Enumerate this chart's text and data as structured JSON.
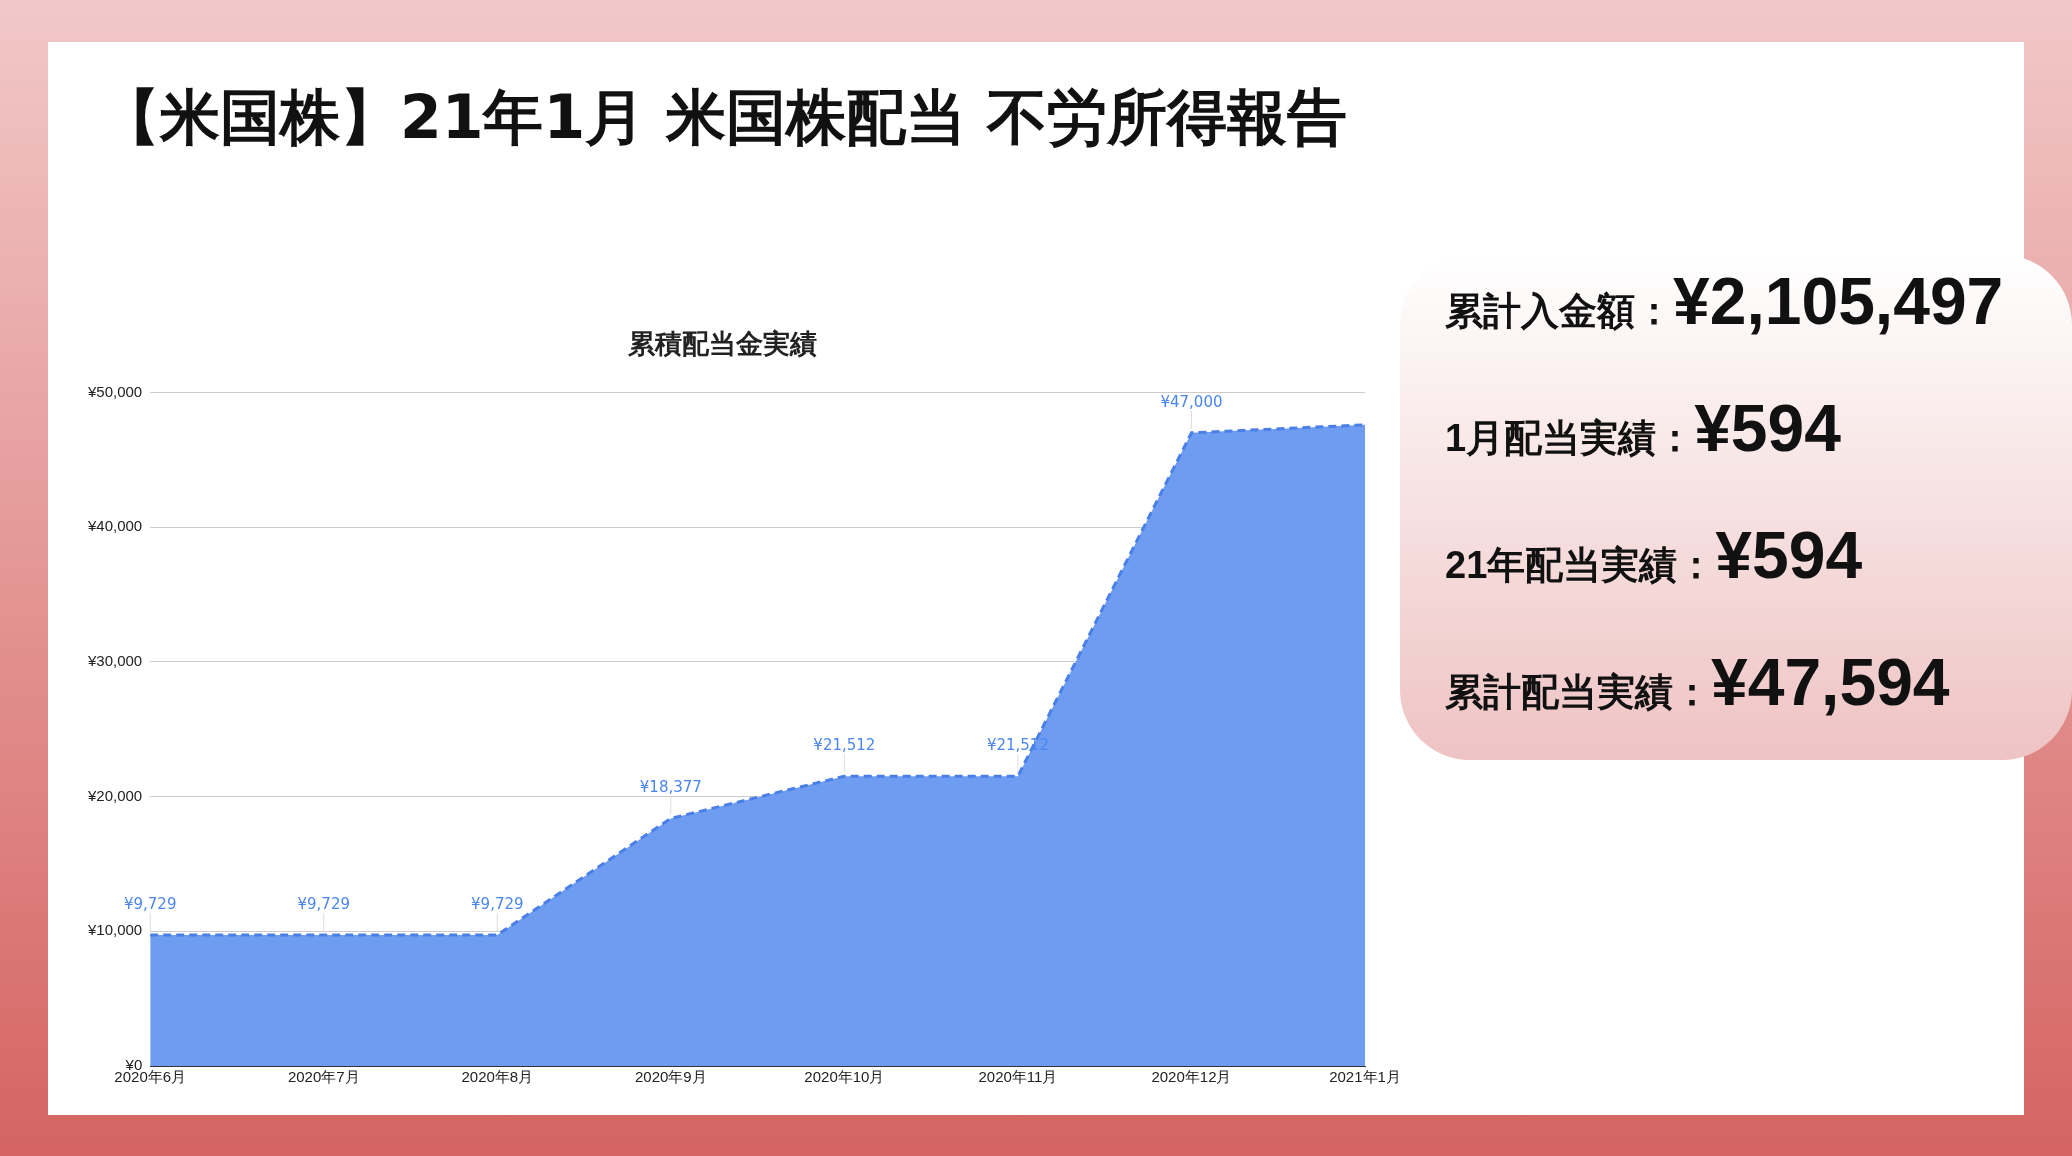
{
  "chart_data": [
    {
      "type": "other",
      "title": "【米国株】21年1月 米国株配当 不労所得報告"
    },
    {
      "type": "area",
      "title": "累積配当金実績",
      "categories": [
        "2020年6月",
        "2020年7月",
        "2020年8月",
        "2020年9月",
        "2020年10月",
        "2020年11月",
        "2020年12月",
        "2021年1月"
      ],
      "series": [
        {
          "color": "#6d9cf0",
          "values": [
            9729,
            9729,
            9729,
            18377,
            21512,
            21512,
            47000,
            47594
          ],
          "value_labels": [
            "¥9,729",
            "¥9,729",
            "¥9,729",
            "¥18,377",
            "¥21,512",
            "¥21,512",
            "¥47,000",
            null
          ]
        }
      ],
      "ylim": [
        0,
        50000
      ],
      "yticks": [
        {
          "value": 0,
          "label": "¥0"
        },
        {
          "value": 10000,
          "label": "¥10,000"
        },
        {
          "value": 20000,
          "label": "¥20,000"
        },
        {
          "value": 30000,
          "label": "¥30,000"
        },
        {
          "value": 40000,
          "label": "¥40,000"
        },
        {
          "value": 50000,
          "label": "¥50,000"
        }
      ],
      "grid": "y",
      "legend": false,
      "line_style": "dashed"
    },
    {
      "type": "other",
      "annotations": [
        "累計入金額：",
        "¥2,105,497",
        "1月配当実績：",
        "¥594",
        "21年配当実績：",
        "¥594",
        "累計配当実績：",
        "¥47,594"
      ]
    }
  ]
}
